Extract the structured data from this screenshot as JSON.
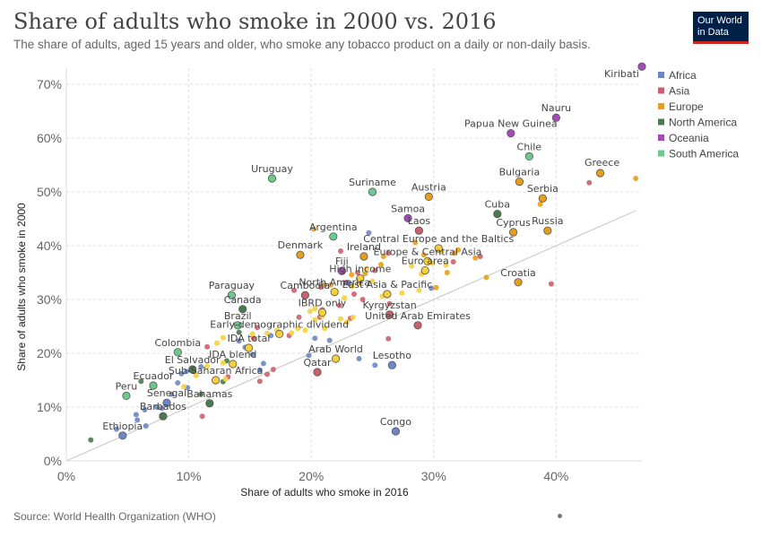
{
  "header": {
    "title": "Share of adults who smoke in 2000 vs. 2016",
    "subtitle": "The share of adults, aged 15 years and older, who smoke any tobacco product on a daily or non-daily basis.",
    "logo_line1": "Our World",
    "logo_line2": "in Data"
  },
  "footer": {
    "source": "Source: World Health Organization (WHO)"
  },
  "colors": {
    "Africa": "#6d86c4",
    "Asia": "#cc5f6e",
    "Europe": "#e69f1c",
    "North America": "#4b7a4c",
    "Oceania": "#a54ab9",
    "South America": "#6cc98d",
    "Aggregate": "#f5d03c",
    "grid": "#dddddd",
    "line": "#cccccc"
  },
  "chart_data": {
    "type": "scatter",
    "title": "Share of adults who smoke in 2000 vs. 2016",
    "xlabel": "Share of adults who smoke in 2016",
    "ylabel": "Share of adults who smoke in 2000",
    "xlim": [
      0,
      47
    ],
    "ylim": [
      0,
      73
    ],
    "x_ticks": [
      "0%",
      "10%",
      "20%",
      "30%",
      "40%"
    ],
    "y_ticks": [
      "0%",
      "10%",
      "20%",
      "30%",
      "40%",
      "50%",
      "60%",
      "70%"
    ],
    "legend": [
      "Africa",
      "Asia",
      "Europe",
      "North America",
      "Oceania",
      "South America"
    ],
    "legend_position": "right",
    "grid": "horizontal",
    "labeled_points": [
      {
        "name": "Kiribati",
        "region": "Oceania",
        "x": 47.0,
        "y": 73.3
      },
      {
        "name": "Nauru",
        "region": "Oceania",
        "x": 40.0,
        "y": 63.8
      },
      {
        "name": "Papua New Guinea",
        "region": "Oceania",
        "x": 36.3,
        "y": 60.9
      },
      {
        "name": "Chile",
        "region": "South America",
        "x": 37.8,
        "y": 56.6
      },
      {
        "name": "Greece",
        "region": "Europe",
        "x": 43.6,
        "y": 53.5
      },
      {
        "name": "Bulgaria",
        "region": "Europe",
        "x": 37.0,
        "y": 51.9
      },
      {
        "name": "Uruguay",
        "region": "South America",
        "x": 16.8,
        "y": 52.5
      },
      {
        "name": "Suriname",
        "region": "South America",
        "x": 25.0,
        "y": 50.0
      },
      {
        "name": "Austria",
        "region": "Europe",
        "x": 29.6,
        "y": 49.1
      },
      {
        "name": "Serbia",
        "region": "Europe",
        "x": 38.9,
        "y": 48.8
      },
      {
        "name": "Samoa",
        "region": "Oceania",
        "x": 27.9,
        "y": 45.1
      },
      {
        "name": "Cuba",
        "region": "North America",
        "x": 35.2,
        "y": 45.9
      },
      {
        "name": "Laos",
        "region": "Asia",
        "x": 28.8,
        "y": 42.8
      },
      {
        "name": "Cyprus",
        "region": "Europe",
        "x": 36.5,
        "y": 42.5
      },
      {
        "name": "Russia",
        "region": "Europe",
        "x": 39.3,
        "y": 42.8
      },
      {
        "name": "Argentina",
        "region": "South America",
        "x": 21.8,
        "y": 41.7
      },
      {
        "name": "Central Europe and the Baltics",
        "region": "Aggregate",
        "x": 30.4,
        "y": 39.5
      },
      {
        "name": "Denmark",
        "region": "Europe",
        "x": 19.1,
        "y": 38.3
      },
      {
        "name": "Ireland",
        "region": "Europe",
        "x": 24.3,
        "y": 38.0
      },
      {
        "name": "Europe & Central Asia",
        "region": "Aggregate",
        "x": 29.5,
        "y": 37.1
      },
      {
        "name": "Euro area",
        "region": "Aggregate",
        "x": 29.3,
        "y": 35.4
      },
      {
        "name": "Fiji",
        "region": "Oceania",
        "x": 22.5,
        "y": 35.3
      },
      {
        "name": "High income",
        "region": "Aggregate",
        "x": 24.0,
        "y": 33.9
      },
      {
        "name": "Croatia",
        "region": "Europe",
        "x": 36.9,
        "y": 33.2
      },
      {
        "name": "North America",
        "region": "Aggregate",
        "x": 21.9,
        "y": 31.4
      },
      {
        "name": "Paraguay",
        "region": "South America",
        "x": 13.5,
        "y": 30.8
      },
      {
        "name": "Cambodia",
        "region": "Asia",
        "x": 19.5,
        "y": 30.8
      },
      {
        "name": "East Asia & Pacific",
        "region": "Aggregate",
        "x": 26.2,
        "y": 31.0
      },
      {
        "name": "Canada",
        "region": "North America",
        "x": 14.4,
        "y": 28.2
      },
      {
        "name": "IBRD only",
        "region": "Aggregate",
        "x": 20.9,
        "y": 27.6
      },
      {
        "name": "Kyrgyzstan",
        "region": "Asia",
        "x": 26.4,
        "y": 27.2
      },
      {
        "name": "Brazil",
        "region": "South America",
        "x": 14.0,
        "y": 25.2
      },
      {
        "name": "United Arab Emirates",
        "region": "Asia",
        "x": 28.7,
        "y": 25.2
      },
      {
        "name": "Early-demographic dividend",
        "region": "Aggregate",
        "x": 17.4,
        "y": 23.6
      },
      {
        "name": "IDA total",
        "region": "Aggregate",
        "x": 14.9,
        "y": 21.0
      },
      {
        "name": "Colombia",
        "region": "South America",
        "x": 9.1,
        "y": 20.2
      },
      {
        "name": "Arab World",
        "region": "Aggregate",
        "x": 22.0,
        "y": 19.0
      },
      {
        "name": "IDA blend",
        "region": "Aggregate",
        "x": 13.6,
        "y": 18.0
      },
      {
        "name": "El Salvador",
        "region": "North America",
        "x": 10.3,
        "y": 17.0
      },
      {
        "name": "Lesotho",
        "region": "Africa",
        "x": 26.6,
        "y": 17.8
      },
      {
        "name": "Qatar",
        "region": "Asia",
        "x": 20.5,
        "y": 16.5
      },
      {
        "name": "Sub-Saharan Africa",
        "region": "Aggregate",
        "x": 12.2,
        "y": 15.0
      },
      {
        "name": "Ecuador",
        "region": "South America",
        "x": 7.1,
        "y": 14.0
      },
      {
        "name": "Peru",
        "region": "South America",
        "x": 4.9,
        "y": 12.1
      },
      {
        "name": "Senegal",
        "region": "Africa",
        "x": 8.2,
        "y": 10.8
      },
      {
        "name": "Bahamas",
        "region": "North America",
        "x": 11.7,
        "y": 10.7
      },
      {
        "name": "Barbados",
        "region": "North America",
        "x": 7.9,
        "y": 8.3
      },
      {
        "name": "Ethiopia",
        "region": "Africa",
        "x": 4.6,
        "y": 4.7
      },
      {
        "name": "Congo",
        "region": "Africa",
        "x": 26.9,
        "y": 5.5
      }
    ],
    "unlabeled_points": [
      {
        "region": "Asia",
        "x": 42.7,
        "y": 51.7
      },
      {
        "region": "Europe",
        "x": 46.5,
        "y": 52.5
      },
      {
        "region": "Europe",
        "x": 38.7,
        "y": 47.7
      },
      {
        "region": "Asia",
        "x": 39.6,
        "y": 32.9
      },
      {
        "region": "Europe",
        "x": 34.3,
        "y": 34.1
      },
      {
        "region": "Asia",
        "x": 33.8,
        "y": 38.0
      },
      {
        "region": "Europe",
        "x": 33.4,
        "y": 37.7
      },
      {
        "region": "Europe",
        "x": 32.0,
        "y": 39.2
      },
      {
        "region": "Europe",
        "x": 31.7,
        "y": 38.6
      },
      {
        "region": "Europe",
        "x": 31.1,
        "y": 35.0
      },
      {
        "region": "Europe",
        "x": 30.2,
        "y": 32.2
      },
      {
        "region": "Asia",
        "x": 31.6,
        "y": 37.0
      },
      {
        "region": "Europe",
        "x": 29.2,
        "y": 38.3
      },
      {
        "region": "Europe",
        "x": 28.5,
        "y": 40.6
      },
      {
        "region": "Asia",
        "x": 26.3,
        "y": 38.6
      },
      {
        "region": "Europe",
        "x": 25.9,
        "y": 38.0
      },
      {
        "region": "Europe",
        "x": 25.7,
        "y": 36.5
      },
      {
        "region": "Asia",
        "x": 25.2,
        "y": 35.4
      },
      {
        "region": "Asia",
        "x": 23.8,
        "y": 35.0
      },
      {
        "region": "Europe",
        "x": 23.3,
        "y": 34.6
      },
      {
        "region": "Asia",
        "x": 22.9,
        "y": 33.2
      },
      {
        "region": "Europe",
        "x": 21.6,
        "y": 32.7
      },
      {
        "region": "Asia",
        "x": 20.8,
        "y": 32.3
      },
      {
        "region": "Europe",
        "x": 20.2,
        "y": 43.1
      },
      {
        "region": "Asia",
        "x": 22.4,
        "y": 39.0
      },
      {
        "region": "Asia",
        "x": 26.4,
        "y": 29.2
      },
      {
        "region": "Asia",
        "x": 26.3,
        "y": 22.7
      },
      {
        "region": "Africa",
        "x": 24.7,
        "y": 42.4
      },
      {
        "region": "Africa",
        "x": 23.9,
        "y": 19.0
      },
      {
        "region": "Africa",
        "x": 25.2,
        "y": 17.8
      },
      {
        "region": "Africa",
        "x": 20.3,
        "y": 22.8
      },
      {
        "region": "Africa",
        "x": 21.5,
        "y": 22.4
      },
      {
        "region": "Asia",
        "x": 23.2,
        "y": 26.5
      },
      {
        "region": "Asia",
        "x": 20.7,
        "y": 26.7
      },
      {
        "region": "Europe",
        "x": 21.1,
        "y": 32.7
      },
      {
        "region": "Europe",
        "x": 24.4,
        "y": 34.8
      },
      {
        "region": "Asia",
        "x": 18.2,
        "y": 23.3
      },
      {
        "region": "Asia",
        "x": 16.4,
        "y": 16.1
      },
      {
        "region": "Asia",
        "x": 15.8,
        "y": 14.8
      },
      {
        "region": "Africa",
        "x": 15.8,
        "y": 16.9
      },
      {
        "region": "Africa",
        "x": 16.1,
        "y": 18.1
      },
      {
        "region": "Africa",
        "x": 15.2,
        "y": 19.8
      },
      {
        "region": "Africa",
        "x": 14.6,
        "y": 21.1
      },
      {
        "region": "Asia",
        "x": 16.9,
        "y": 17.0
      },
      {
        "region": "Africa",
        "x": 16.7,
        "y": 23.3
      },
      {
        "region": "Africa",
        "x": 14.1,
        "y": 22.3
      },
      {
        "region": "Asia",
        "x": 15.3,
        "y": 22.8
      },
      {
        "region": "Asia",
        "x": 11.5,
        "y": 21.2
      },
      {
        "region": "Africa",
        "x": 11.0,
        "y": 17.5
      },
      {
        "region": "Africa",
        "x": 9.8,
        "y": 16.6
      },
      {
        "region": "Africa",
        "x": 9.4,
        "y": 16.2
      },
      {
        "region": "Africa",
        "x": 9.1,
        "y": 14.5
      },
      {
        "region": "Africa",
        "x": 9.9,
        "y": 13.6
      },
      {
        "region": "Africa",
        "x": 8.6,
        "y": 12.4
      },
      {
        "region": "Africa",
        "x": 7.8,
        "y": 9.8
      },
      {
        "region": "Africa",
        "x": 7.4,
        "y": 10.0
      },
      {
        "region": "Africa",
        "x": 6.4,
        "y": 9.5
      },
      {
        "region": "Africa",
        "x": 5.7,
        "y": 8.6
      },
      {
        "region": "Africa",
        "x": 5.8,
        "y": 7.6
      },
      {
        "region": "Africa",
        "x": 4.1,
        "y": 5.9
      },
      {
        "region": "Africa",
        "x": 6.5,
        "y": 6.5
      },
      {
        "region": "Asia",
        "x": 11.1,
        "y": 8.3
      },
      {
        "region": "Asia",
        "x": 13.2,
        "y": 15.6
      },
      {
        "region": "North America",
        "x": 6.1,
        "y": 14.8
      },
      {
        "region": "North America",
        "x": 2.0,
        "y": 3.9
      },
      {
        "region": "North America",
        "x": 11.0,
        "y": 12.4
      },
      {
        "region": "North America",
        "x": 12.8,
        "y": 14.7
      },
      {
        "region": "North America",
        "x": 13.1,
        "y": 18.6
      },
      {
        "region": "North America",
        "x": 14.1,
        "y": 23.9
      },
      {
        "region": "Asia",
        "x": 15.6,
        "y": 24.8
      },
      {
        "region": "Asia",
        "x": 19.0,
        "y": 26.7
      },
      {
        "region": "Asia",
        "x": 20.9,
        "y": 28.1
      },
      {
        "region": "Asia",
        "x": 22.3,
        "y": 28.9
      },
      {
        "region": "Asia",
        "x": 18.6,
        "y": 31.7
      },
      {
        "region": "Asia",
        "x": 24.2,
        "y": 30.0
      },
      {
        "region": "Asia",
        "x": 23.5,
        "y": 31.0
      },
      {
        "region": "Aggregate",
        "x": 20.3,
        "y": 26.2
      },
      {
        "region": "Aggregate",
        "x": 20.9,
        "y": 26.9
      },
      {
        "region": "Aggregate",
        "x": 22.4,
        "y": 26.4
      },
      {
        "region": "Aggregate",
        "x": 22.9,
        "y": 25.8
      },
      {
        "region": "Aggregate",
        "x": 23.4,
        "y": 26.7
      },
      {
        "region": "Aggregate",
        "x": 19.9,
        "y": 27.8
      },
      {
        "region": "Aggregate",
        "x": 20.3,
        "y": 28.3
      },
      {
        "region": "Aggregate",
        "x": 21.1,
        "y": 24.6
      },
      {
        "region": "Aggregate",
        "x": 19.5,
        "y": 24.3
      },
      {
        "region": "Aggregate",
        "x": 18.9,
        "y": 24.6
      },
      {
        "region": "Aggregate",
        "x": 17.2,
        "y": 24.3
      },
      {
        "region": "Aggregate",
        "x": 16.4,
        "y": 23.7
      },
      {
        "region": "Aggregate",
        "x": 15.2,
        "y": 23.6
      },
      {
        "region": "Aggregate",
        "x": 12.8,
        "y": 22.9
      },
      {
        "region": "Aggregate",
        "x": 12.3,
        "y": 21.9
      },
      {
        "region": "Aggregate",
        "x": 12.8,
        "y": 18.2
      },
      {
        "region": "Aggregate",
        "x": 11.5,
        "y": 17.6
      },
      {
        "region": "Aggregate",
        "x": 13.0,
        "y": 15.2
      },
      {
        "region": "Aggregate",
        "x": 10.6,
        "y": 15.9
      },
      {
        "region": "Aggregate",
        "x": 9.6,
        "y": 13.8
      },
      {
        "region": "Aggregate",
        "x": 22.7,
        "y": 30.3
      },
      {
        "region": "Aggregate",
        "x": 23.3,
        "y": 32.4
      },
      {
        "region": "Aggregate",
        "x": 23.9,
        "y": 32.9
      },
      {
        "region": "Aggregate",
        "x": 25.0,
        "y": 33.4
      },
      {
        "region": "Aggregate",
        "x": 24.5,
        "y": 35.7
      },
      {
        "region": "Aggregate",
        "x": 25.8,
        "y": 30.6
      },
      {
        "region": "Aggregate",
        "x": 27.4,
        "y": 31.2
      },
      {
        "region": "Aggregate",
        "x": 28.8,
        "y": 31.7
      },
      {
        "region": "Aggregate",
        "x": 29.0,
        "y": 34.7
      },
      {
        "region": "Aggregate",
        "x": 28.2,
        "y": 36.2
      },
      {
        "region": "Aggregate",
        "x": 29.9,
        "y": 36.7
      },
      {
        "region": "Aggregate",
        "x": 30.6,
        "y": 38.9
      },
      {
        "region": "Aggregate",
        "x": 31.0,
        "y": 36.4
      },
      {
        "region": "Aggregate",
        "x": 18.4,
        "y": 23.8
      },
      {
        "region": "Africa",
        "x": 29.8,
        "y": 32.1
      },
      {
        "region": "Africa",
        "x": 23.0,
        "y": 33.0
      },
      {
        "region": "Africa",
        "x": 19.8,
        "y": 19.6
      }
    ]
  }
}
